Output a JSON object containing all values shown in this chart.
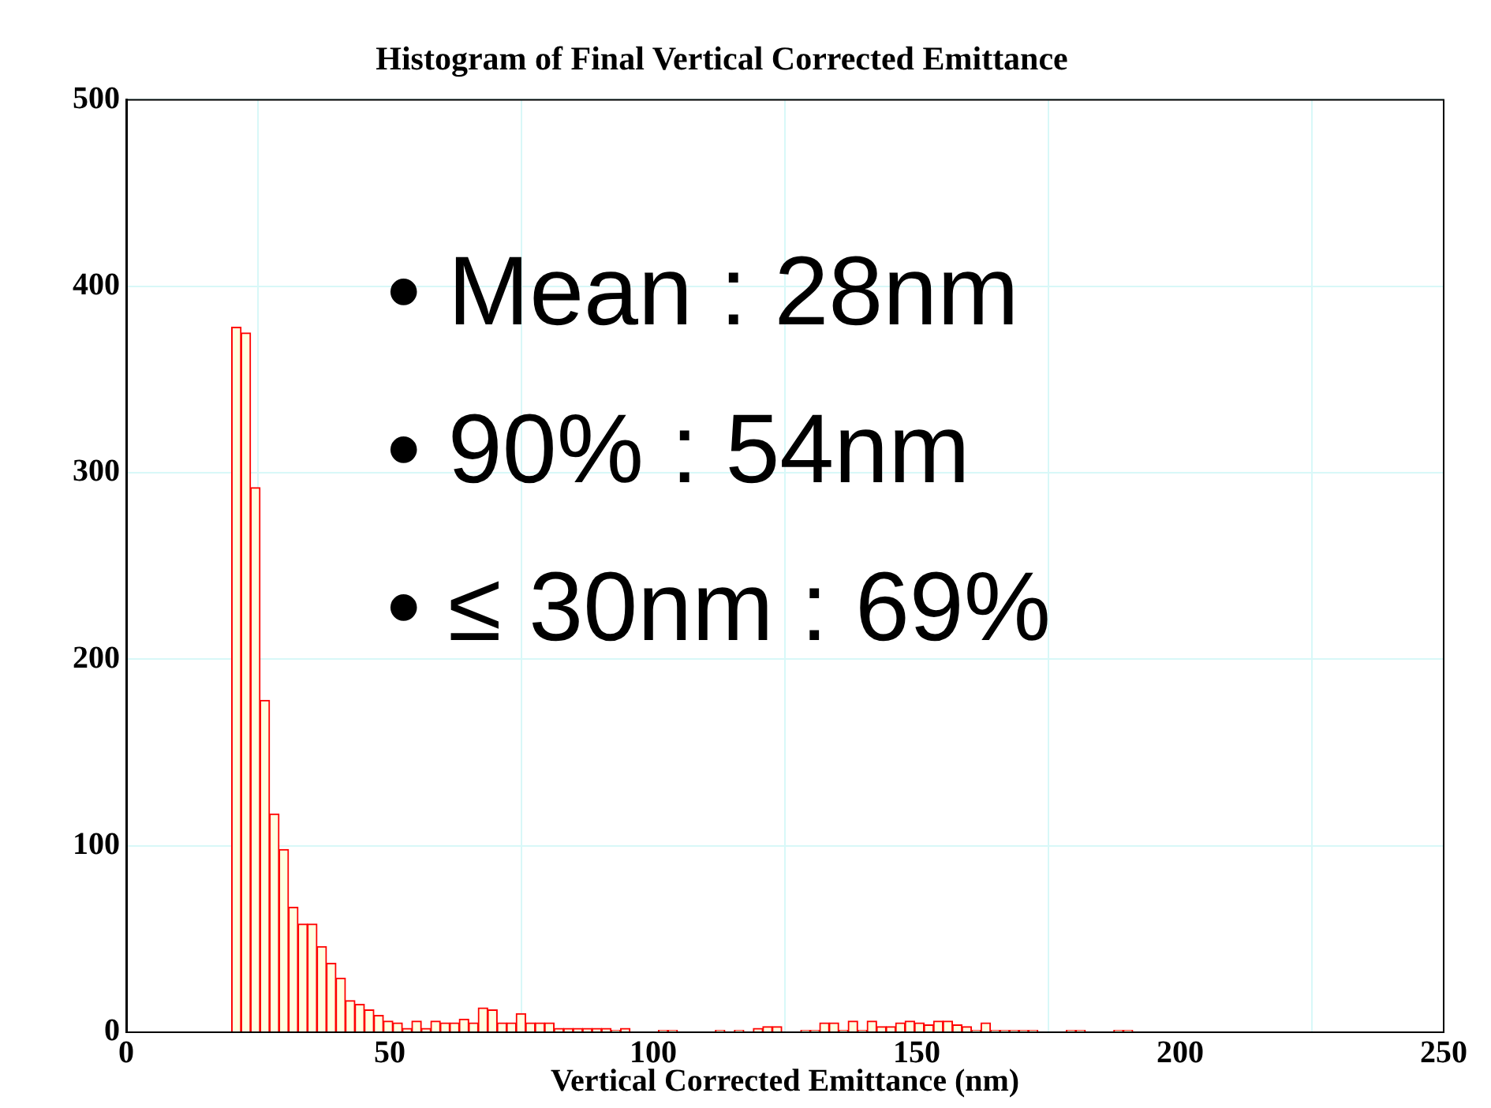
{
  "chart_data": {
    "type": "histogram",
    "title": "Histogram of Final Vertical Corrected Emittance",
    "xlabel": "Vertical Corrected Emittance (nm)",
    "annotations": [
      "• Mean : 28nm",
      "• 90% : 54nm",
      "• ≤ 30nm : 69%"
    ],
    "bins": [
      20,
      21.8,
      23.6,
      25.4,
      27.2,
      29,
      30.8,
      32.6,
      34.4,
      36.2,
      38,
      39.8,
      41.6,
      43.4,
      45.2,
      47,
      48.8,
      50.6,
      52.4,
      54.2,
      56,
      57.8,
      59.6,
      61.4,
      63.2,
      65,
      66.8,
      68.6,
      70.4,
      72.2,
      74,
      75.8,
      77.6,
      79.4,
      81.2,
      83,
      84.8,
      86.6,
      88.4,
      90.2,
      92,
      93.8,
      95.6,
      97.4,
      99.2,
      101,
      102.8,
      104.6,
      106.4,
      108.2,
      110,
      111.8,
      113.6,
      115.4,
      117.2,
      119,
      120.8,
      122.6,
      124.4,
      126.2,
      128,
      129.8,
      131.6,
      133.4,
      135.2,
      137,
      138.8,
      140.6,
      142.4,
      144.2,
      146,
      147.8,
      149.6,
      151.4,
      153.2,
      155,
      156.8,
      158.6,
      160.4,
      162.2,
      164,
      165.8,
      167.6,
      169.4,
      171.2,
      173,
      174.8,
      176.6,
      178.4,
      180.2,
      182,
      183.8,
      185.6,
      187.4,
      189.2,
      191,
      192.8,
      194.6,
      196.4,
      198.2,
      200
    ],
    "values": [
      378,
      375,
      292,
      178,
      117,
      98,
      67,
      58,
      58,
      46,
      37,
      29,
      17,
      15,
      12,
      9,
      6,
      5,
      2,
      6,
      2,
      6,
      5,
      5,
      7,
      5,
      13,
      12,
      5,
      5,
      10,
      5,
      5,
      5,
      2,
      2,
      2,
      2,
      2,
      2,
      1,
      2,
      0,
      0,
      0,
      1,
      1,
      0,
      0,
      0,
      0,
      1,
      0,
      1,
      0,
      2,
      3,
      3,
      0,
      0,
      1,
      1,
      5,
      5,
      1,
      6,
      1,
      6,
      3,
      3,
      5,
      6,
      5,
      4,
      6,
      6,
      4,
      3,
      1,
      5,
      1,
      1,
      1,
      1,
      1,
      0,
      0,
      0,
      1,
      1,
      0,
      0,
      0,
      1,
      1,
      0,
      0,
      0,
      0,
      0
    ],
    "color": "#ffffe0",
    "xlim": [
      0,
      250
    ],
    "xticks": [
      0,
      50,
      100,
      150,
      200,
      250
    ],
    "ylim": [
      0,
      500
    ],
    "yticks": [
      0,
      100,
      200,
      300,
      400,
      500
    ],
    "grid": true
  }
}
